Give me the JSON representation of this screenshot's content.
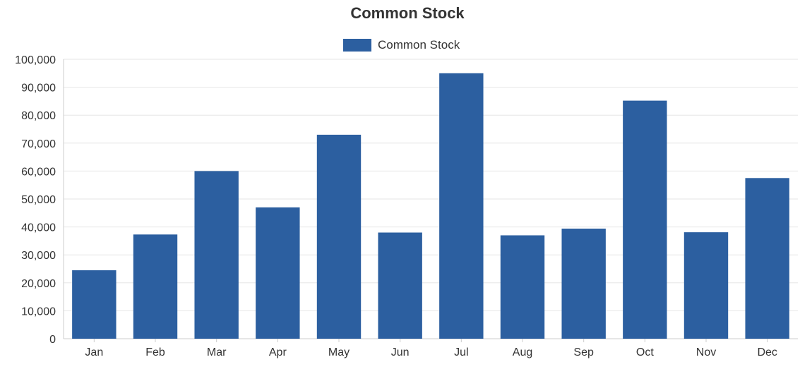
{
  "chart_data": {
    "type": "bar",
    "title": "Common Stock",
    "xlabel": "",
    "ylabel": "",
    "categories": [
      "Jan",
      "Feb",
      "Mar",
      "Apr",
      "May",
      "Jun",
      "Jul",
      "Aug",
      "Sep",
      "Oct",
      "Nov",
      "Dec"
    ],
    "series": [
      {
        "name": "Common Stock",
        "values": [
          24500,
          37300,
          60000,
          47000,
          73000,
          38000,
          95000,
          37000,
          39400,
          85200,
          38100,
          57500
        ]
      }
    ],
    "ylim": [
      0,
      100000
    ],
    "yticks": [
      0,
      10000,
      20000,
      30000,
      40000,
      50000,
      60000,
      70000,
      80000,
      90000,
      100000
    ],
    "ytick_labels": [
      "0",
      "10,000",
      "20,000",
      "30,000",
      "40,000",
      "50,000",
      "60,000",
      "70,000",
      "80,000",
      "90,000",
      "100,000"
    ],
    "grid": true,
    "legend_position": "top-center",
    "colors": {
      "bar": "#2c5fa0"
    }
  }
}
